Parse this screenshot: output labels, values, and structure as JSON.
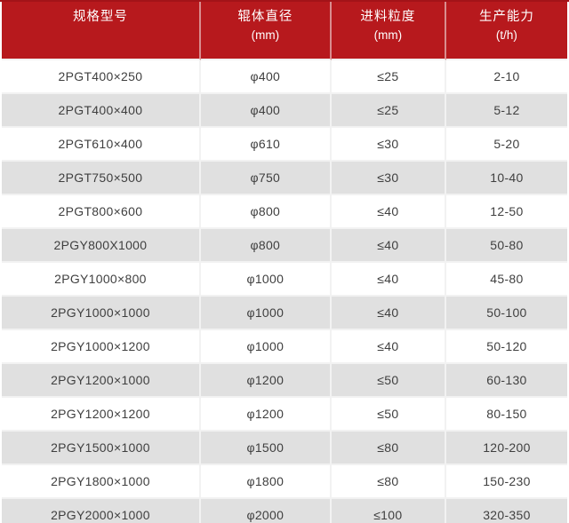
{
  "chart_data": {
    "type": "table",
    "title": "",
    "legend_position": "none",
    "grid": true,
    "columns": [
      {
        "title": "规格型号",
        "unit": ""
      },
      {
        "title": "辊体直径",
        "unit": "(mm)"
      },
      {
        "title": "进料粒度",
        "unit": "(mm)"
      },
      {
        "title": "生产能力",
        "unit": "(t/h)"
      }
    ],
    "rows": [
      [
        "2PGT400×250",
        "φ400",
        "≤25",
        "2-10"
      ],
      [
        "2PGT400×400",
        "φ400",
        "≤25",
        "5-12"
      ],
      [
        "2PGT610×400",
        "φ610",
        "≤30",
        "5-20"
      ],
      [
        "2PGT750×500",
        "φ750",
        "≤30",
        "10-40"
      ],
      [
        "2PGT800×600",
        "φ800",
        "≤40",
        "12-50"
      ],
      [
        "2PGY800X1000",
        "φ800",
        "≤40",
        "50-80"
      ],
      [
        "2PGY1000×800",
        "φ1000",
        "≤40",
        "45-80"
      ],
      [
        "2PGY1000×1000",
        "φ1000",
        "≤40",
        "50-100"
      ],
      [
        "2PGY1000×1200",
        "φ1000",
        "≤40",
        "50-120"
      ],
      [
        "2PGY1200×1000",
        "φ1200",
        "≤50",
        "60-130"
      ],
      [
        "2PGY1200×1200",
        "φ1200",
        "≤50",
        "80-150"
      ],
      [
        "2PGY1500×1000",
        "φ1500",
        "≤80",
        "120-200"
      ],
      [
        "2PGY1800×1000",
        "φ1800",
        "≤80",
        "150-230"
      ],
      [
        "2PGY2000×1000",
        "φ2000",
        "≤100",
        "320-350"
      ]
    ],
    "column_names_semantic": [
      "spec-model",
      "roller-diameter",
      "feed-size",
      "capacity"
    ],
    "column_widths_percent": [
      35.2,
      23.1,
      20.3,
      21.4
    ]
  },
  "colors": {
    "header_bg": "#b7191d",
    "header_text": "#ffffff",
    "header_separator": "#d98d8f",
    "zebra_gray": "#e0e0e0",
    "row_white": "#ffffff",
    "body_text": "#3f3f3f",
    "grid_line": "#f2f2f2",
    "top_border": "#a31318"
  }
}
